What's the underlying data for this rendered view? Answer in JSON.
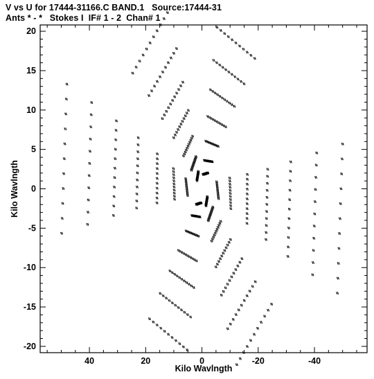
{
  "chart_data": {
    "type": "scatter",
    "title": "V vs U for 17444-31166.C BAND.1   Source:17444-31",
    "subtitle": "Ants * - *   Stokes I  IF# 1 - 2  Chan# 1",
    "xlabel": "Kilo Wavlngth",
    "ylabel": "Kilo Wavlngth",
    "xlim": [
      57.5,
      -58.7
    ],
    "ylim": [
      -20.8,
      20.8
    ],
    "x_reversed": true,
    "xticks": [
      40,
      20,
      0,
      -20,
      -40
    ],
    "xtick_labels": [
      "40",
      "20",
      "0",
      "-20",
      "-40"
    ],
    "yticks": [
      20,
      15,
      10,
      5,
      0,
      -5,
      -10,
      -15,
      -20
    ],
    "ytick_labels": [
      "20",
      "15",
      "10",
      "5",
      "0",
      "-5",
      "-10",
      "-15",
      "-20"
    ],
    "grid": false,
    "marker": "small double-tick",
    "description": "VLA snapshot uv-coverage: six radial arms at 0/60/120/180/240/300 degrees, each a set of short radial tracks.",
    "arms": [
      {
        "name": "arm-upper-right",
        "angle_deg": 60,
        "tracks": [
          {
            "u": -1.2,
            "v": 1.9
          },
          {
            "u": -2.2,
            "v": 3.5
          },
          {
            "u": -3.5,
            "v": 5.7
          },
          {
            "u": -5.2,
            "v": 8.5
          },
          {
            "u": -7.2,
            "v": 11.5
          },
          {
            "u": -9.5,
            "v": 14.8
          },
          {
            "u": -12.0,
            "v": 18.5
          }
        ]
      },
      {
        "name": "arm-lower-left",
        "angle_deg": 240,
        "tracks": [
          {
            "u": 1.2,
            "v": -1.9
          },
          {
            "u": 2.2,
            "v": -3.5
          },
          {
            "u": 3.5,
            "v": -5.7
          },
          {
            "u": 5.2,
            "v": -8.5
          },
          {
            "u": 7.2,
            "v": -11.5
          },
          {
            "u": 9.5,
            "v": -14.8
          },
          {
            "u": 12.0,
            "v": -18.5
          }
        ]
      },
      {
        "name": "arm-upper-left",
        "angle_deg": 120,
        "tracks": [
          {
            "u": 1.6,
            "v": 1.6
          },
          {
            "u": 3.0,
            "v": 3.2
          },
          {
            "u": 5.0,
            "v": 5.4
          },
          {
            "u": 7.5,
            "v": 8.2
          },
          {
            "u": 10.5,
            "v": 11.2
          },
          {
            "u": 14.0,
            "v": 14.8
          },
          {
            "u": 18.5,
            "v": 18.5
          }
        ]
      },
      {
        "name": "arm-lower-right",
        "angle_deg": 300,
        "tracks": [
          {
            "u": -1.6,
            "v": -1.6
          },
          {
            "u": -3.0,
            "v": -3.2
          },
          {
            "u": -5.0,
            "v": -5.4
          },
          {
            "u": -7.5,
            "v": -8.2
          },
          {
            "u": -10.5,
            "v": -11.2
          },
          {
            "u": -14.0,
            "v": -14.8
          },
          {
            "u": -18.5,
            "v": -18.5
          }
        ]
      },
      {
        "name": "arm-left",
        "angle_deg": 180,
        "tracks": [
          {
            "u": 5.5,
            "v": 0.2
          },
          {
            "u": 10.0,
            "v": 0.6
          },
          {
            "u": 16.0,
            "v": 1.3
          },
          {
            "u": 23.0,
            "v": 2.0
          },
          {
            "u": 31.0,
            "v": 2.6
          },
          {
            "u": 40.0,
            "v": 3.2
          },
          {
            "u": 49.0,
            "v": 3.8
          }
        ]
      },
      {
        "name": "arm-right",
        "angle_deg": 0,
        "tracks": [
          {
            "u": -5.5,
            "v": -0.2
          },
          {
            "u": -10.0,
            "v": -0.6
          },
          {
            "u": -16.0,
            "v": -1.3
          },
          {
            "u": -23.0,
            "v": -2.0
          },
          {
            "u": -31.0,
            "v": -2.6
          },
          {
            "u": -40.0,
            "v": -3.2
          },
          {
            "u": -49.0,
            "v": -3.8
          }
        ]
      }
    ]
  }
}
